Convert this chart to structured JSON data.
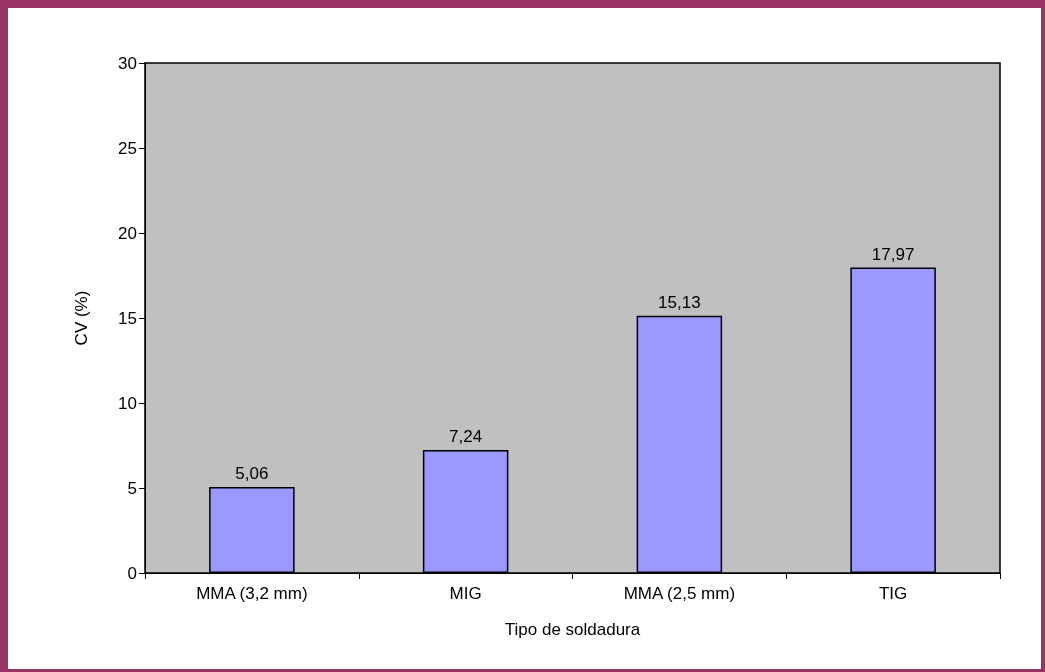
{
  "chart_data": {
    "type": "bar",
    "xlabel": "Tipo de soldadura",
    "ylabel": "CV (%)",
    "categories": [
      "MMA (3,2 mm)",
      "MIG",
      "MMA (2,5 mm)",
      "TIG"
    ],
    "values": [
      5.06,
      7.24,
      15.13,
      17.97
    ],
    "value_labels": [
      "5,06",
      "7,24",
      "15,13",
      "17,97"
    ],
    "color": "#9999ff",
    "ylim": [
      0,
      30
    ],
    "yticks": [
      0,
      5,
      10,
      15,
      20,
      25,
      30
    ],
    "grid": false
  }
}
